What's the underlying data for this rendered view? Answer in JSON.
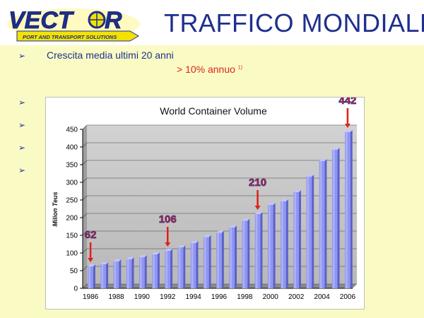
{
  "slide": {
    "title": "TRAFFICO MONDIALE",
    "logo": {
      "name": "VECTOR",
      "tagline": "PORT AND TRANSPORT SOLUTIONS"
    },
    "bullet_glyph": "➢",
    "bullet_text": "Crescita media ultimi 20 anni",
    "growth_text": "> 10% annuo",
    "footnote_mark": "1)"
  },
  "chart_data": {
    "type": "bar",
    "title": "World Container Volume",
    "xlabel": "",
    "ylabel": "Milion Teus",
    "categories": [
      "1986",
      "1987",
      "1988",
      "1989",
      "1990",
      "1991",
      "1992",
      "1993",
      "1994",
      "1995",
      "1996",
      "1997",
      "1998",
      "1999",
      "2000",
      "2001",
      "2002",
      "2003",
      "2004",
      "2005",
      "2006"
    ],
    "values": [
      62,
      68,
      76,
      82,
      88,
      96,
      106,
      116,
      128,
      145,
      157,
      172,
      191,
      210,
      236,
      246,
      272,
      316,
      360,
      392,
      442
    ],
    "x_tick_labels": [
      "1986",
      "1988",
      "1990",
      "1992",
      "1994",
      "1996",
      "1998",
      "2000",
      "2002",
      "2004",
      "2006"
    ],
    "y_ticks": [
      0,
      50,
      100,
      150,
      200,
      250,
      300,
      350,
      400,
      450
    ],
    "ylim": [
      0,
      450
    ],
    "grid": true,
    "colors": {
      "bar": "#8f95f2",
      "bar_dark": "#5a60c8",
      "bar_light": "#c3c6fb",
      "wall": "#c6c6c6",
      "annotation": "#e0201a",
      "annotation_text_fill": "#e0201a",
      "annotation_text_stroke": "#1e2f8e"
    },
    "annotations": [
      {
        "category": "1986",
        "text": "62"
      },
      {
        "category": "1992",
        "text": "106"
      },
      {
        "category": "1999",
        "text": "210"
      },
      {
        "category": "2006",
        "text": "442"
      }
    ]
  }
}
